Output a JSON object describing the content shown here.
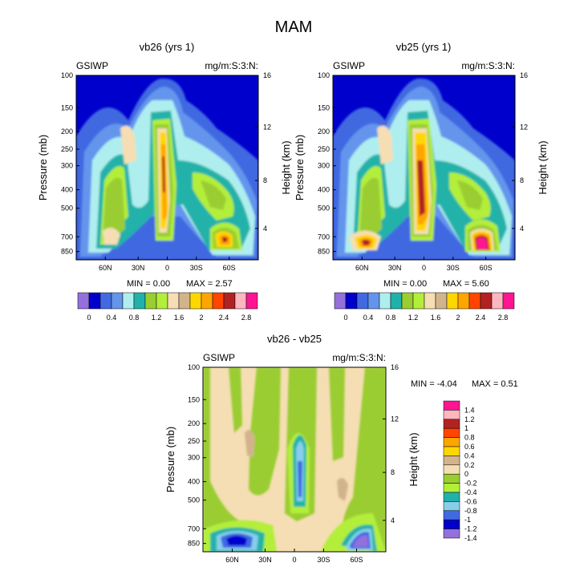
{
  "page": {
    "title": "MAM"
  },
  "palette": {
    "plot_bg": "#0000cc",
    "levels": [
      "#9370db",
      "#0000cd",
      "#4169e1",
      "#6495ed",
      "#afeeee",
      "#20b2aa",
      "#9acd32",
      "#b3ee3a",
      "#f5deb3",
      "#d2b48c",
      "#ffd700",
      "#ffa500",
      "#ff4500",
      "#b22222",
      "#ffb6c1",
      "#ff1493"
    ],
    "diff_levels": [
      "#9370db",
      "#0000cd",
      "#4169e1",
      "#87ceeb",
      "#20b2aa",
      "#b3ee3a",
      "#9acd32",
      "#f5deb3",
      "#d2b48c",
      "#ffd700",
      "#ffa500",
      "#ff4500",
      "#b22222",
      "#ffb6c1",
      "#ff1493"
    ]
  },
  "chart_data": [
    {
      "type": "heatmap",
      "title": "vb26 (yrs 1)",
      "left_label": "GSIWP",
      "right_label": "mg/m:S:3:N:",
      "ylabel": "Pressure (mb)",
      "ylabel_right": "Height (km)",
      "y_ticks": [
        "100",
        "150",
        "200",
        "250",
        "300",
        "400",
        "500",
        "700",
        "850"
      ],
      "y_right_ticks": [
        "16",
        "12",
        "8",
        "4"
      ],
      "x_ticks": [
        "60N",
        "30N",
        "0",
        "30S",
        "60S"
      ],
      "min_text": "MIN =  0.00",
      "max_text": "MAX =  2.57",
      "colorbar_labels": [
        "0",
        "0.4",
        "0.8",
        "1.2",
        "1.6",
        "2",
        "2.4",
        "2.8"
      ]
    },
    {
      "type": "heatmap",
      "title": "vb25 (yrs 1)",
      "left_label": "GSIWP",
      "right_label": "mg/m:S:3:N:",
      "ylabel": "Pressure (mb)",
      "ylabel_right": "Height (km)",
      "y_ticks": [
        "100",
        "150",
        "200",
        "250",
        "300",
        "400",
        "500",
        "700",
        "850"
      ],
      "y_right_ticks": [
        "16",
        "12",
        "8",
        "4"
      ],
      "x_ticks": [
        "60N",
        "30N",
        "0",
        "30S",
        "60S"
      ],
      "min_text": "MIN =  0.00",
      "max_text": "MAX =  5.60",
      "colorbar_labels": [
        "0",
        "0.4",
        "0.8",
        "1.2",
        "1.6",
        "2",
        "2.4",
        "2.8"
      ]
    },
    {
      "type": "heatmap",
      "title": "vb26 - vb25",
      "left_label": "GSIWP",
      "right_label": "mg/m:S:3:N:",
      "ylabel": "Pressure (mb)",
      "ylabel_right": "Height (km)",
      "y_ticks": [
        "100",
        "150",
        "200",
        "250",
        "300",
        "400",
        "500",
        "700",
        "850"
      ],
      "y_right_ticks": [
        "16",
        "12",
        "8",
        "4"
      ],
      "x_ticks": [
        "60N",
        "30N",
        "0",
        "30S",
        "60S"
      ],
      "min_text": "MIN =  -4.04",
      "max_text": "MAX =  0.51",
      "colorbar_labels": [
        "1.4",
        "1.2",
        "1",
        "0.8",
        "0.6",
        "0.4",
        "0.2",
        "0",
        "-0.2",
        "-0.4",
        "-0.6",
        "-0.8",
        "-1",
        "-1.2",
        "-1.4"
      ]
    }
  ]
}
